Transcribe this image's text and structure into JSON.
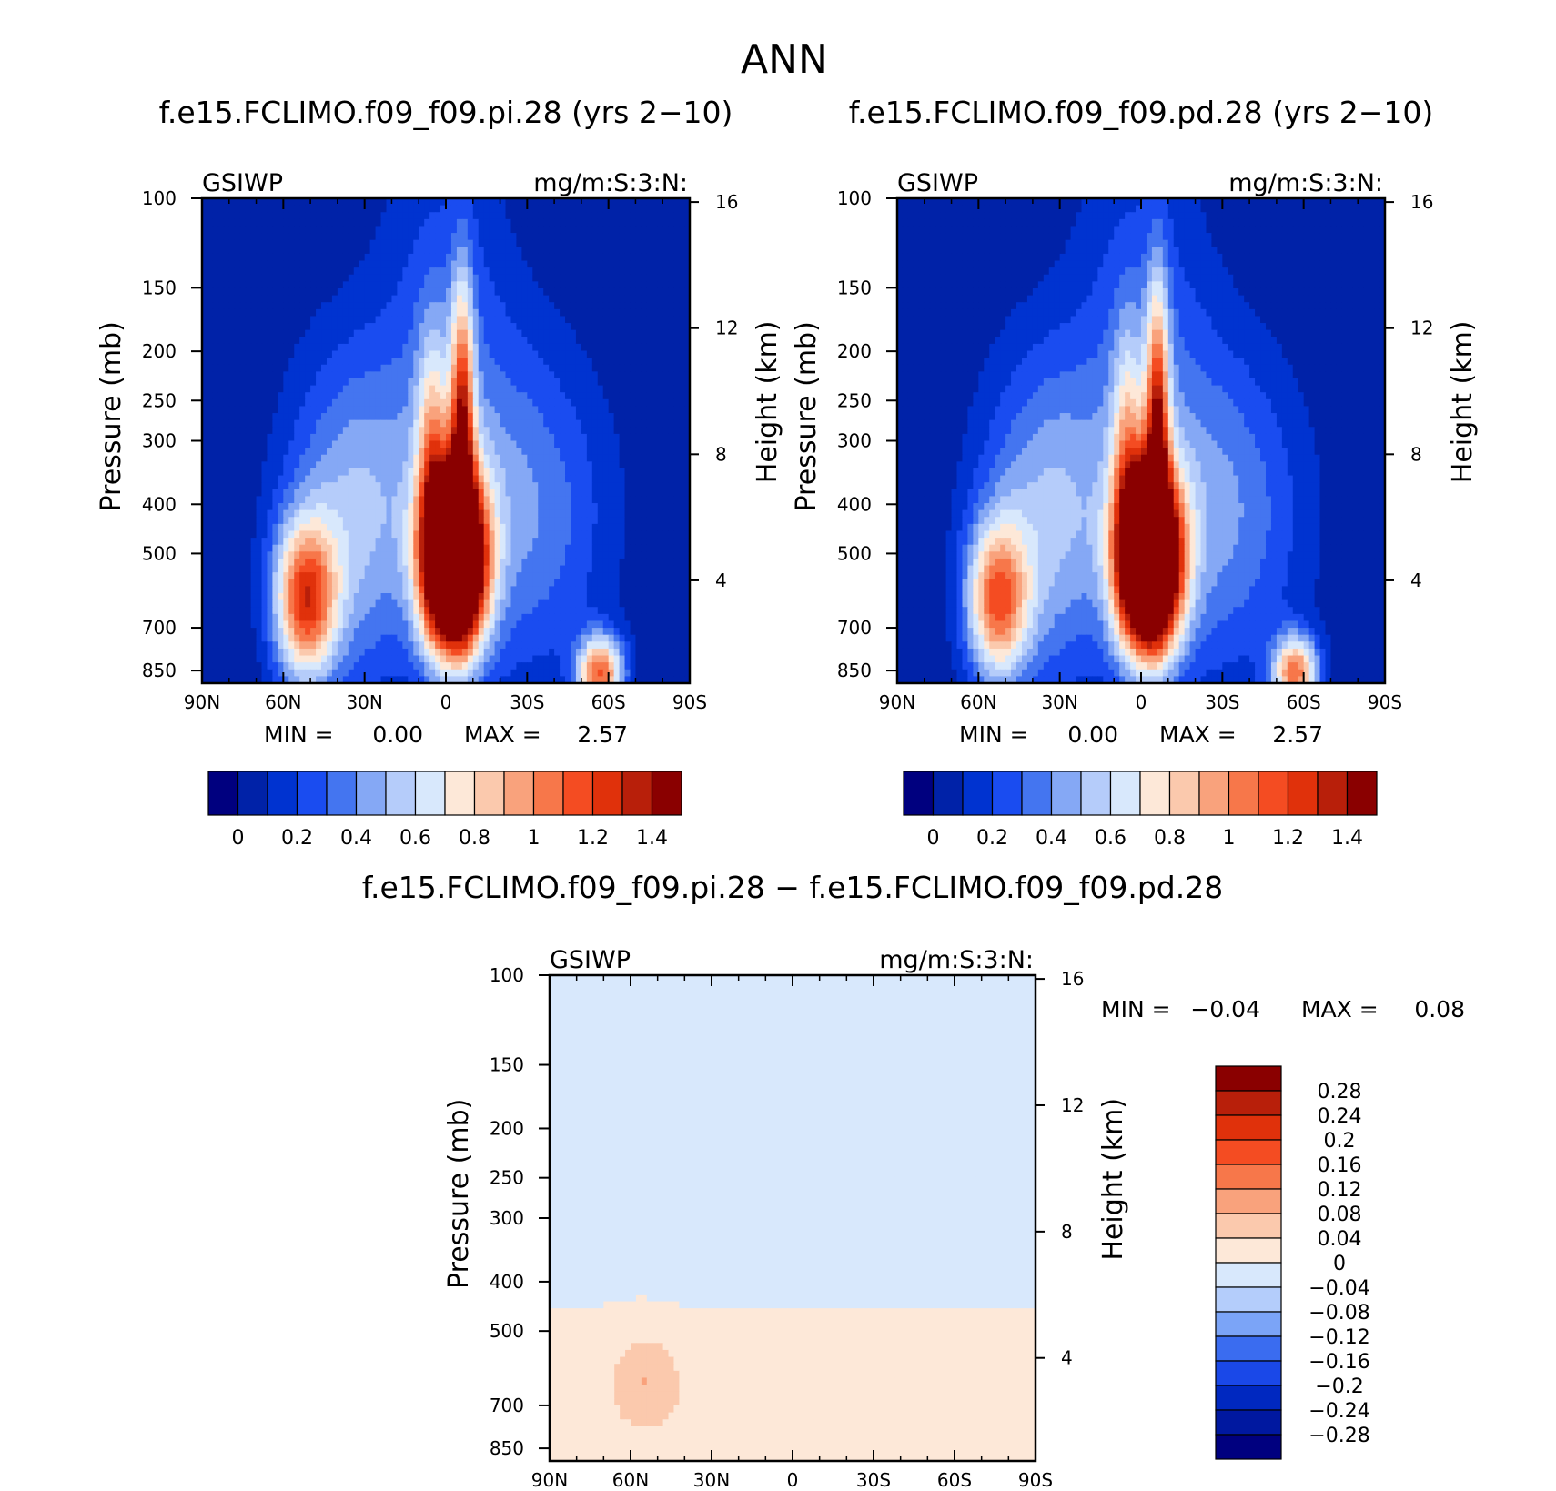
{
  "figure": {
    "main_title": "ANN",
    "colors": {
      "abs_palette": [
        "#00007f",
        "#0022a8",
        "#0033d0",
        "#1a4cf0",
        "#4475f0",
        "#85a8f5",
        "#b5ccfa",
        "#d8e8fc",
        "#fde8d8",
        "#fbc9ad",
        "#f9a27c",
        "#f7774a",
        "#f44c22",
        "#e0310b",
        "#b81f0a",
        "#8a0000"
      ],
      "diff_palette": [
        "#00007f",
        "#0018a0",
        "#0028c0",
        "#1a48e8",
        "#3a6cf0",
        "#7ba4f7",
        "#b4cdfb",
        "#d8e8fc",
        "#fde8d8",
        "#fbc9ad",
        "#f9a27c",
        "#f7774a",
        "#f44c22",
        "#e0310b",
        "#b81f0a",
        "#8a0000"
      ]
    }
  },
  "chart_data": [
    {
      "type": "heatmap",
      "title": "f.e15.FCLIMO.f09_f09.pi.28 (yrs 2−10)",
      "left_label": "GSIWP",
      "right_label": "mg/m:S:3:N:",
      "xlabel": "",
      "ylabel": "Pressure (mb)",
      "ylabel_right": "Height (km)",
      "x_ticks": [
        "90N",
        "60N",
        "30N",
        "0",
        "30S",
        "60S",
        "90S"
      ],
      "y_ticks": [
        "100",
        "150",
        "200",
        "250",
        "300",
        "400",
        "500",
        "700",
        "850"
      ],
      "y_ticks_right": [
        "16",
        "12",
        "8",
        "4"
      ],
      "x_range": [
        90,
        -90
      ],
      "y_range": [
        100,
        900
      ],
      "y_scale": "log",
      "min_text": "MIN =",
      "min_value": "0.00",
      "max_text": "MAX =",
      "max_value": "2.57",
      "levels": [
        0,
        0.1,
        0.2,
        0.3,
        0.4,
        0.5,
        0.6,
        0.7,
        0.8,
        0.9,
        1.0,
        1.1,
        1.2,
        1.3,
        1.4
      ],
      "colorbar_labels": [
        "0",
        "0.2",
        "0.4",
        "0.6",
        "0.8",
        "1",
        "1.2",
        "1.4"
      ],
      "features": [
        {
          "lat": -3,
          "p": 520,
          "amp": 2.57,
          "slat": 8,
          "sp": 0.28
        },
        {
          "lat": -6,
          "p": 280,
          "amp": 1.0,
          "slat": 3,
          "sp": 0.45
        },
        {
          "lat": 5,
          "p": 320,
          "amp": 0.55,
          "slat": 4,
          "sp": 0.4
        },
        {
          "lat": 52,
          "p": 620,
          "amp": 1.05,
          "slat": 8,
          "sp": 0.25
        },
        {
          "lat": 35,
          "p": 430,
          "amp": 0.5,
          "slat": 18,
          "sp": 0.55
        },
        {
          "lat": -57,
          "p": 860,
          "amp": 1.05,
          "slat": 6,
          "sp": 0.12
        },
        {
          "lat": -30,
          "p": 420,
          "amp": 0.38,
          "slat": 22,
          "sp": 0.55
        },
        {
          "lat": 0,
          "p": 200,
          "amp": 0.25,
          "slat": 18,
          "sp": 0.8
        }
      ]
    },
    {
      "type": "heatmap",
      "title": "f.e15.FCLIMO.f09_f09.pd.28 (yrs 2−10)",
      "left_label": "GSIWP",
      "right_label": "mg/m:S:3:N:",
      "xlabel": "",
      "ylabel": "Pressure (mb)",
      "ylabel_right": "Height (km)",
      "x_ticks": [
        "90N",
        "60N",
        "30N",
        "0",
        "30S",
        "60S",
        "90S"
      ],
      "y_ticks": [
        "100",
        "150",
        "200",
        "250",
        "300",
        "400",
        "500",
        "700",
        "850"
      ],
      "y_ticks_right": [
        "16",
        "12",
        "8",
        "4"
      ],
      "x_range": [
        90,
        -90
      ],
      "y_range": [
        100,
        900
      ],
      "y_scale": "log",
      "min_text": "MIN =",
      "min_value": "0.00",
      "max_text": "MAX =",
      "max_value": "2.57",
      "levels": [
        0,
        0.1,
        0.2,
        0.3,
        0.4,
        0.5,
        0.6,
        0.7,
        0.8,
        0.9,
        1.0,
        1.1,
        1.2,
        1.3,
        1.4
      ],
      "colorbar_labels": [
        "0",
        "0.2",
        "0.4",
        "0.6",
        "0.8",
        "1",
        "1.2",
        "1.4"
      ],
      "features": [
        {
          "lat": -3,
          "p": 520,
          "amp": 2.57,
          "slat": 8,
          "sp": 0.28
        },
        {
          "lat": -6,
          "p": 280,
          "amp": 1.0,
          "slat": 3,
          "sp": 0.45
        },
        {
          "lat": 5,
          "p": 320,
          "amp": 0.5,
          "slat": 4,
          "sp": 0.4
        },
        {
          "lat": 53,
          "p": 620,
          "amp": 0.95,
          "slat": 8,
          "sp": 0.25
        },
        {
          "lat": 35,
          "p": 430,
          "amp": 0.5,
          "slat": 18,
          "sp": 0.55
        },
        {
          "lat": -57,
          "p": 860,
          "amp": 1.0,
          "slat": 6,
          "sp": 0.12
        },
        {
          "lat": -30,
          "p": 420,
          "amp": 0.4,
          "slat": 22,
          "sp": 0.55
        },
        {
          "lat": 0,
          "p": 200,
          "amp": 0.25,
          "slat": 18,
          "sp": 0.8
        }
      ]
    },
    {
      "type": "heatmap",
      "title": "f.e15.FCLIMO.f09_f09.pi.28 − f.e15.FCLIMO.f09_f09.pd.28",
      "left_label": "GSIWP",
      "right_label": "mg/m:S:3:N:",
      "xlabel": "",
      "ylabel": "Pressure (mb)",
      "ylabel_right": "Height (km)",
      "x_ticks": [
        "90N",
        "60N",
        "30N",
        "0",
        "30S",
        "60S",
        "90S"
      ],
      "y_ticks": [
        "100",
        "150",
        "200",
        "250",
        "300",
        "400",
        "500",
        "700",
        "850"
      ],
      "y_ticks_right": [
        "16",
        "12",
        "8",
        "4"
      ],
      "x_range": [
        90,
        -90
      ],
      "y_range": [
        100,
        900
      ],
      "y_scale": "log",
      "min_text": "MIN =",
      "min_value": "−0.04",
      "max_text": "MAX =",
      "max_value": "0.08",
      "levels": [
        -0.28,
        -0.24,
        -0.2,
        -0.16,
        -0.12,
        -0.08,
        -0.04,
        0,
        0.04,
        0.08,
        0.12,
        0.16,
        0.2,
        0.24,
        0.28
      ],
      "colorbar_labels": [
        "−0.28",
        "−0.24",
        "−0.2",
        "−0.16",
        "−0.12",
        "−0.08",
        "−0.04",
        "0",
        "0.04",
        "0.08",
        "0.12",
        "0.16",
        "0.2",
        "0.24",
        "0.28"
      ],
      "features": [
        {
          "lat": 55,
          "p": 620,
          "amp": 0.06,
          "slat": 8,
          "sp": 0.15
        },
        {
          "lat": 0,
          "p": 250,
          "amp": -0.03,
          "slat": 70,
          "sp": 0.35
        },
        {
          "lat": 0,
          "p": 700,
          "amp": 0.03,
          "slat": 80,
          "sp": 0.25
        }
      ]
    }
  ]
}
